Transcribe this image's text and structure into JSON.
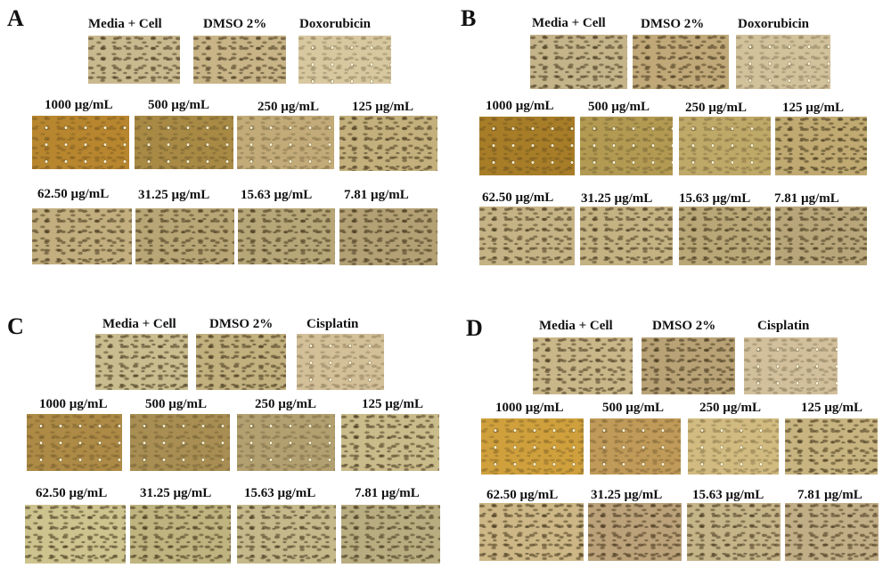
{
  "panels": [
    {
      "letter": "A",
      "top_labels": [
        "Media + Cell",
        "DMSO 2%",
        "Doxorubicin"
      ],
      "row1_labels": [
        "1000 µg/mL",
        "500 µg/mL",
        "250 µg/mL",
        "125 µg/mL"
      ],
      "row2_labels": [
        "62.50 µg/mL",
        "31.25 µg/mL",
        "15.63 µg/mL",
        "7.81 µg/mL"
      ]
    },
    {
      "letter": "B",
      "top_labels": [
        "Media + Cell",
        "DMSO 2%",
        "Doxorubicin"
      ],
      "row1_labels": [
        "1000 µg/mL",
        "500 µg/mL",
        "250 µg/mL",
        "125 µg/mL"
      ],
      "row2_labels": [
        "62.50 µg/mL",
        "31.25 µg/mL",
        "15.63 µg/mL",
        "7.81 µg/mL"
      ]
    },
    {
      "letter": "C",
      "top_labels": [
        "Media + Cell",
        "DMSO 2%",
        "Cisplatin"
      ],
      "row1_labels": [
        "1000 µg/mL",
        "500 µg/mL",
        "250 µg/mL",
        "125 µg/mL"
      ],
      "row2_labels": [
        "62.50 µg/mL",
        "31.25 µg/mL",
        "15.63 µg/mL",
        "7.81 µg/mL"
      ]
    },
    {
      "letter": "D",
      "top_labels": [
        "Media + Cell",
        "DMSO 2%",
        "Cisplatin"
      ],
      "row1_labels": [
        "1000 µg/mL",
        "500 µg/mL",
        "250 µg/mL",
        "125 µg/mL"
      ],
      "row2_labels": [
        "62.50 µg/mL",
        "31.25 µg/mL",
        "15.63 µg/mL",
        "7.81 µg/mL"
      ]
    }
  ],
  "colors": {
    "A": {
      "top": [
        "#c9b98e",
        "#c8b487",
        "#d8c8a0"
      ],
      "row1": [
        "#b8862e",
        "#a88a45",
        "#c2ab78",
        "#c4b07c"
      ],
      "row2": [
        "#c2ae7e",
        "#b9a676",
        "#b7a678",
        "#b3a175"
      ]
    },
    "B": {
      "top": [
        "#c5b48a",
        "#c0a878",
        "#d2c29c"
      ],
      "row1": [
        "#a77d28",
        "#b29a52",
        "#bfa968",
        "#c0aa72"
      ],
      "row2": [
        "#c6b385",
        "#c4b283",
        "#b9a777",
        "#b8a67a"
      ]
    },
    "C": {
      "top": [
        "#c9bd8f",
        "#c2b07e",
        "#d3c099"
      ],
      "row1": [
        "#ad8a45",
        "#a88e52",
        "#b3a070",
        "#c9bb8a"
      ],
      "row2": [
        "#cdc38e",
        "#bfb47f",
        "#c5b98b",
        "#b8ad80"
      ]
    },
    "D": {
      "top": [
        "#c9b689",
        "#b8a276",
        "#d2c09c"
      ],
      "row1": [
        "#cfa03c",
        "#c09a58",
        "#d1bb80",
        "#c8b480"
      ],
      "row2": [
        "#cdb786",
        "#bca27a",
        "#c6b489",
        "#c2ae86"
      ]
    }
  }
}
